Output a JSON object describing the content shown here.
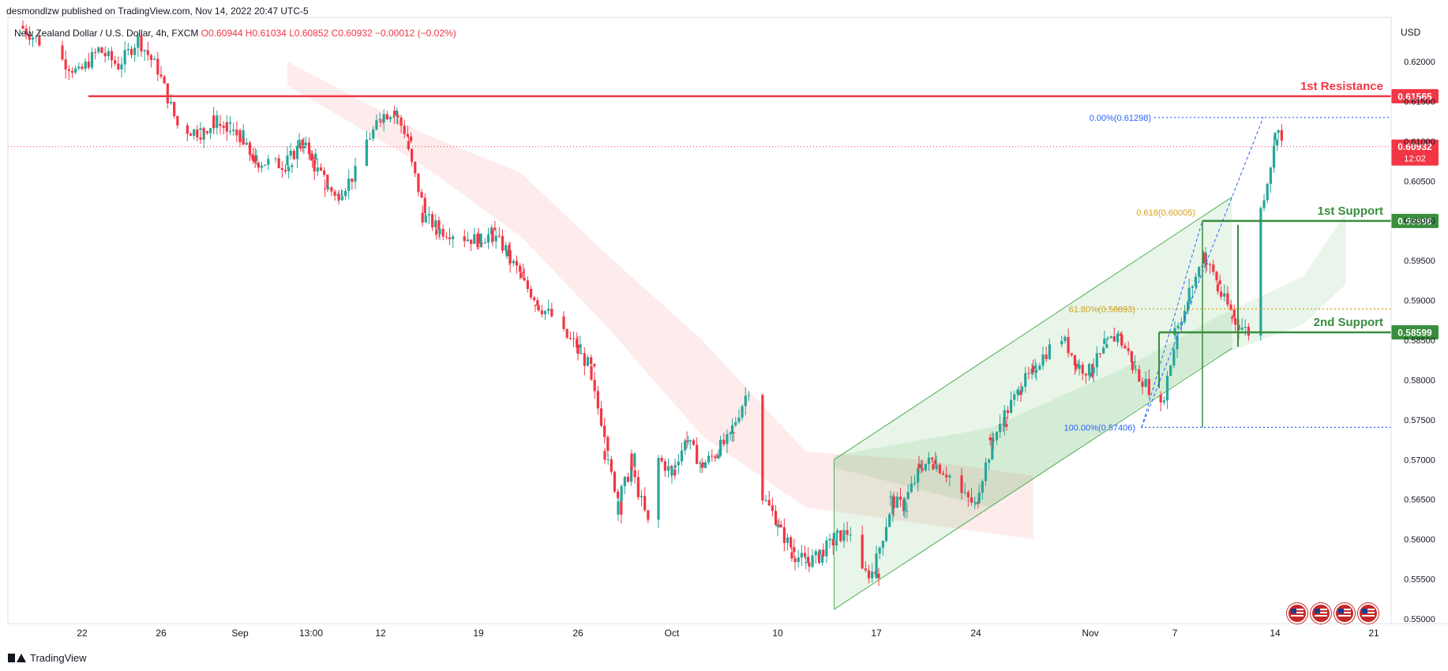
{
  "header": {
    "publisher": "desmondlzw published on TradingView.com, Nov 14, 2022 20:47 UTC-5",
    "symbol": "New Zealand Dollar / U.S. Dollar, 4h, FXCM",
    "ohlc": "O0.60944  H0.61034  L0.60852  C0.60932  −0.00012 (−0.02%)",
    "currency": "USD"
  },
  "footer": {
    "logo_text": "TradingView"
  },
  "colors": {
    "up": "#26a69a",
    "down": "#f23645",
    "resistance": "#f23645",
    "support": "#388e3c",
    "fib_blue": "#2962ff",
    "fib_gold": "#d4a017",
    "channel": "#4caf50"
  },
  "icons": [
    "us-flag-icon",
    "us-flag-icon",
    "us-flag-icon",
    "us-flag-icon"
  ],
  "chart_data": {
    "type": "candlestick",
    "timeframe": "4h",
    "ylim": [
      0.55,
      0.6235
    ],
    "yticks": [
      "0.62000",
      "0.61500",
      "0.61000",
      "0.60500",
      "0.60000",
      "0.59500",
      "0.59000",
      "0.58500",
      "0.58000",
      "0.57500",
      "0.57000",
      "0.56500",
      "0.56000",
      "0.55500",
      "0.55000"
    ],
    "xticks": [
      {
        "label": "22",
        "x": "2022-08-22"
      },
      {
        "label": "26",
        "x": "2022-08-26"
      },
      {
        "label": "Sep",
        "x": "2022-09-01"
      },
      {
        "label": "13:00",
        "x": "2022-09-07"
      },
      {
        "label": "12",
        "x": "2022-09-12"
      },
      {
        "label": "19",
        "x": "2022-09-19"
      },
      {
        "label": "26",
        "x": "2022-09-26"
      },
      {
        "label": "Oct",
        "x": "2022-10-03"
      },
      {
        "label": "10",
        "x": "2022-10-10"
      },
      {
        "label": "17",
        "x": "2022-10-17"
      },
      {
        "label": "24",
        "x": "2022-10-24"
      },
      {
        "label": "Nov",
        "x": "2022-11-01"
      },
      {
        "label": "7",
        "x": "2022-11-07"
      },
      {
        "label": "14",
        "x": "2022-11-14"
      },
      {
        "label": "21",
        "x": "2022-11-21"
      }
    ],
    "price_path": [
      [
        "2022-08-19",
        0.6245
      ],
      [
        "2022-08-22",
        0.6185
      ],
      [
        "2022-08-23",
        0.6215
      ],
      [
        "2022-08-24",
        0.6195
      ],
      [
        "2022-08-25",
        0.6228
      ],
      [
        "2022-08-26",
        0.619
      ],
      [
        "2022-08-27",
        0.612
      ],
      [
        "2022-08-29",
        0.611
      ],
      [
        "2022-08-30",
        0.6125
      ],
      [
        "2022-09-01",
        0.6105
      ],
      [
        "2022-09-02",
        0.6075
      ],
      [
        "2022-09-05",
        0.607
      ],
      [
        "2022-09-06",
        0.61
      ],
      [
        "2022-09-07",
        0.608
      ],
      [
        "2022-09-08",
        0.6045
      ],
      [
        "2022-09-09",
        0.603
      ],
      [
        "2022-09-10",
        0.606
      ],
      [
        "2022-09-12",
        0.613
      ],
      [
        "2022-09-13",
        0.614
      ],
      [
        "2022-09-14",
        0.61
      ],
      [
        "2022-09-15",
        0.601
      ],
      [
        "2022-09-16",
        0.599
      ],
      [
        "2022-09-19",
        0.5975
      ],
      [
        "2022-09-20",
        0.5985
      ],
      [
        "2022-09-21",
        0.596
      ],
      [
        "2022-09-22",
        0.593
      ],
      [
        "2022-09-23",
        0.59
      ],
      [
        "2022-09-24",
        0.588
      ],
      [
        "2022-09-26",
        0.584
      ],
      [
        "2022-09-27",
        0.581
      ],
      [
        "2022-09-28",
        0.572
      ],
      [
        "2022-09-29",
        0.564
      ],
      [
        "2022-09-30",
        0.57
      ],
      [
        "2022-10-01",
        0.562
      ],
      [
        "2022-10-02",
        0.5705
      ],
      [
        "2022-10-03",
        0.568
      ],
      [
        "2022-10-04",
        0.573
      ],
      [
        "2022-10-05",
        0.569
      ],
      [
        "2022-10-06",
        0.571
      ],
      [
        "2022-10-07",
        0.573
      ],
      [
        "2022-10-08",
        0.579
      ],
      [
        "2022-10-09",
        0.566
      ],
      [
        "2022-10-10",
        0.562
      ],
      [
        "2022-10-11",
        0.5585
      ],
      [
        "2022-10-12",
        0.557
      ],
      [
        "2022-10-13",
        0.558
      ],
      [
        "2022-10-14",
        0.56
      ],
      [
        "2022-10-15",
        0.561
      ],
      [
        "2022-10-16",
        0.5555
      ],
      [
        "2022-10-17",
        0.556
      ],
      [
        "2022-10-18",
        0.565
      ],
      [
        "2022-10-19",
        0.564
      ],
      [
        "2022-10-20",
        0.569
      ],
      [
        "2022-10-21",
        0.57
      ],
      [
        "2022-10-22",
        0.568
      ],
      [
        "2022-10-23",
        0.566
      ],
      [
        "2022-10-24",
        0.564
      ],
      [
        "2022-10-25",
        0.572
      ],
      [
        "2022-10-26",
        0.575
      ],
      [
        "2022-10-27",
        0.579
      ],
      [
        "2022-10-28",
        0.581
      ],
      [
        "2022-10-29",
        0.584
      ],
      [
        "2022-10-30",
        0.586
      ],
      [
        "2022-10-31",
        0.582
      ],
      [
        "2022-11-01",
        0.581
      ],
      [
        "2022-11-02",
        0.584
      ],
      [
        "2022-11-03",
        0.586
      ],
      [
        "2022-11-04",
        0.582
      ],
      [
        "2022-11-05",
        0.579
      ],
      [
        "2022-11-06",
        0.5745
      ],
      [
        "2022-11-07",
        0.586
      ],
      [
        "2022-11-08",
        0.59
      ],
      [
        "2022-11-09",
        0.596
      ],
      [
        "2022-11-10",
        0.592
      ],
      [
        "2022-11-11",
        0.588
      ],
      [
        "2022-11-12",
        0.586
      ],
      [
        "2022-11-13",
        0.5995
      ],
      [
        "2022-11-14",
        0.611
      ],
      [
        "2022-11-15",
        0.6105
      ],
      [
        "2022-11-16",
        0.6093
      ]
    ],
    "last_price": {
      "value": 0.60932,
      "label": "0.60932",
      "countdown": "12:02"
    },
    "levels": [
      {
        "name": "1st Resistance",
        "value": 0.61565,
        "label": "0.61565",
        "color": "#f23645"
      },
      {
        "name": "1st Support",
        "value": 0.59998,
        "label": "0.59998",
        "color": "#388e3c"
      },
      {
        "name": "2nd Support",
        "value": 0.58599,
        "label": "0.58599",
        "color": "#388e3c"
      }
    ],
    "fibonacci_extension": [
      {
        "label": "0.00%(0.61298)",
        "value": 0.61298
      },
      {
        "label": "100.00%(0.57406)",
        "value": 0.57406
      }
    ],
    "fibonacci_retracement": [
      {
        "label": "61.80%(0.58893)",
        "value": 0.58893
      },
      {
        "label": "0.618(0.60005)",
        "value": 0.60005
      }
    ],
    "channel": {
      "lower": [
        [
          "2022-10-14",
          0.5512
        ],
        [
          "2022-11-11",
          0.584
        ]
      ],
      "upper": [
        [
          "2022-10-14",
          0.57
        ],
        [
          "2022-11-11",
          0.603
        ]
      ]
    },
    "ichimoku_cloud_red": [
      [
        "2022-09-05",
        0.62,
        0.617
      ],
      [
        "2022-09-15",
        0.611,
        0.607
      ],
      [
        "2022-09-22",
        0.606,
        0.598
      ],
      [
        "2022-09-28",
        0.596,
        0.587
      ],
      [
        "2022-10-05",
        0.585,
        0.573
      ],
      [
        "2022-10-12",
        0.571,
        0.564
      ],
      [
        "2022-10-20",
        0.57,
        0.562
      ],
      [
        "2022-10-28",
        0.568,
        0.56
      ]
    ],
    "ichimoku_cloud_green": [
      [
        "2022-10-14",
        0.5705,
        0.569
      ],
      [
        "2022-10-25",
        0.574,
        0.564
      ],
      [
        "2022-11-04",
        0.582,
        0.576
      ],
      [
        "2022-11-10",
        0.588,
        0.583
      ],
      [
        "2022-11-16",
        0.593,
        0.587
      ],
      [
        "2022-11-19",
        0.601,
        0.592
      ]
    ]
  }
}
